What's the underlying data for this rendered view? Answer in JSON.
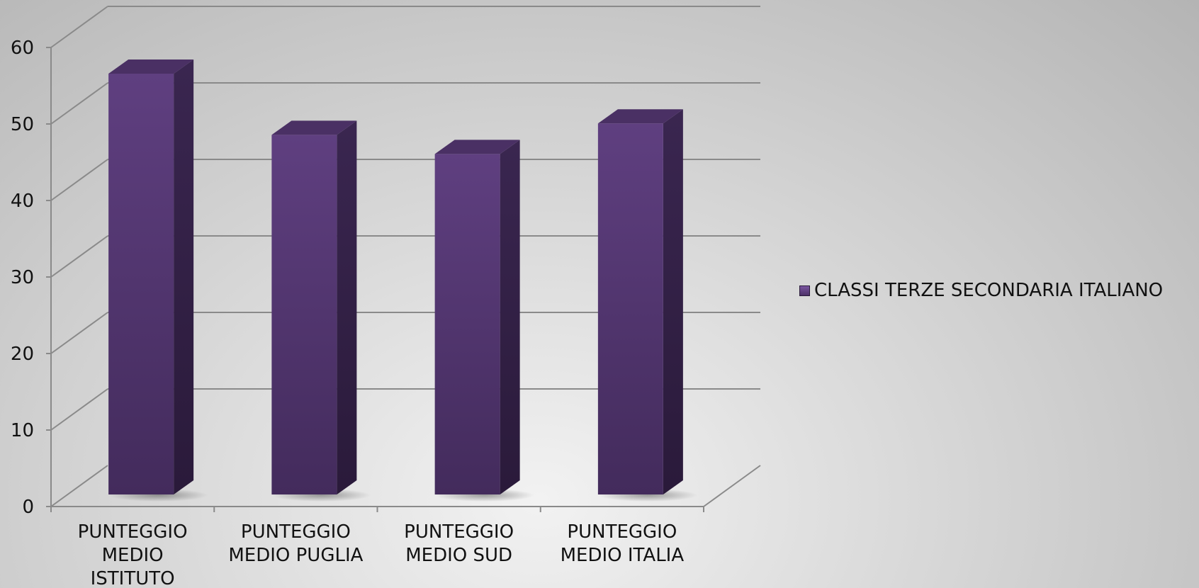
{
  "chart_data": {
    "type": "bar",
    "categories": [
      "PUNTEGGIO MEDIO ISTITUTO",
      "PUNTEGGIO MEDIO PUGLIA",
      "PUNTEGGIO MEDIO SUD",
      "PUNTEGGIO MEDIO ITALIA"
    ],
    "category_lines": [
      [
        "PUNTEGGIO",
        "MEDIO",
        "ISTITUTO"
      ],
      [
        "PUNTEGGIO",
        "MEDIO PUGLIA"
      ],
      [
        "PUNTEGGIO",
        "MEDIO SUD"
      ],
      [
        "PUNTEGGIO",
        "MEDIO ITALIA"
      ]
    ],
    "series": [
      {
        "name": "CLASSI TERZE SECONDARIA ITALIANO",
        "values": [
          55,
          47,
          44.5,
          48.5
        ]
      }
    ],
    "yticks": [
      "0",
      "10",
      "20",
      "30",
      "40",
      "50",
      "60"
    ],
    "ylim": [
      0,
      60
    ],
    "grid": true,
    "legend_position": "right",
    "style": "3d-column",
    "colors": {
      "bar_front": "#5a3b7a",
      "bar_side": "#362349",
      "bar_top": "#4a3064",
      "grid": "#8a8a8a"
    }
  }
}
